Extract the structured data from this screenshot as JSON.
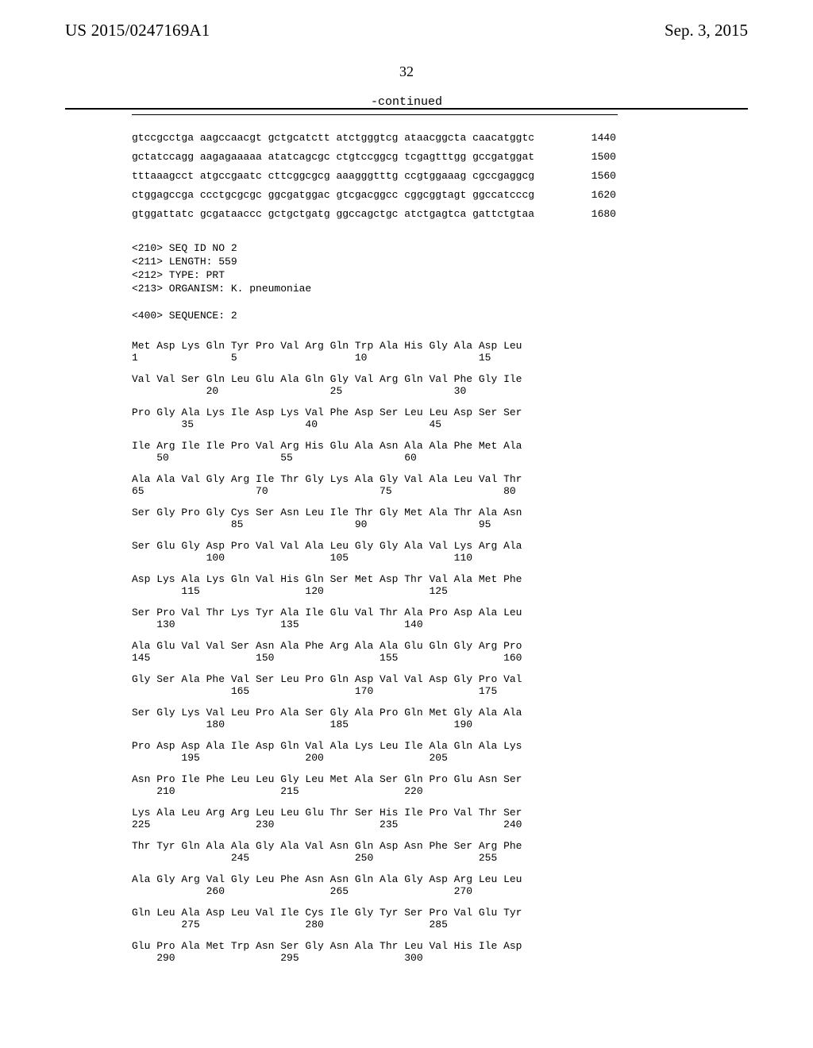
{
  "header": {
    "pub_number": "US 2015/0247169A1",
    "pub_date": "Sep. 3, 2015",
    "page_num": "32",
    "continued": "-continued"
  },
  "nucleotide": {
    "lines": [
      {
        "seq": "gtccgcctga aagccaacgt gctgcatctt atctgggtcg ataacggcta caacatggtc",
        "num": "1440"
      },
      {
        "seq": "gctatccagg aagagaaaaa atatcagcgc ctgtccggcg tcgagtttgg gccgatggat",
        "num": "1500"
      },
      {
        "seq": "tttaaagcct atgccgaatc cttcggcgcg aaagggtttg ccgtggaaag cgccgaggcg",
        "num": "1560"
      },
      {
        "seq": "ctggagccga ccctgcgcgc ggcgatggac gtcgacggcc cggcggtagt ggccatcccg",
        "num": "1620"
      },
      {
        "seq": "gtggattatc gcgataaccc gctgctgatg ggccagctgc atctgagtca gattctgtaa",
        "num": "1680"
      }
    ]
  },
  "meta": {
    "lines": [
      "<210> SEQ ID NO 2",
      "<211> LENGTH: 559",
      "<212> TYPE: PRT",
      "<213> ORGANISM: K. pneumoniae",
      "",
      "<400> SEQUENCE: 2"
    ]
  },
  "protein": {
    "pairs": [
      {
        "aa": "Met Asp Lys Gln Tyr Pro Val Arg Gln Trp Ala His Gly Ala Asp Leu",
        "num": "1               5                   10                  15"
      },
      {
        "aa": "Val Val Ser Gln Leu Glu Ala Gln Gly Val Arg Gln Val Phe Gly Ile",
        "num": "            20                  25                  30"
      },
      {
        "aa": "Pro Gly Ala Lys Ile Asp Lys Val Phe Asp Ser Leu Leu Asp Ser Ser",
        "num": "        35                  40                  45"
      },
      {
        "aa": "Ile Arg Ile Ile Pro Val Arg His Glu Ala Asn Ala Ala Phe Met Ala",
        "num": "    50                  55                  60"
      },
      {
        "aa": "Ala Ala Val Gly Arg Ile Thr Gly Lys Ala Gly Val Ala Leu Val Thr",
        "num": "65                  70                  75                  80"
      },
      {
        "aa": "Ser Gly Pro Gly Cys Ser Asn Leu Ile Thr Gly Met Ala Thr Ala Asn",
        "num": "                85                  90                  95"
      },
      {
        "aa": "Ser Glu Gly Asp Pro Val Val Ala Leu Gly Gly Ala Val Lys Arg Ala",
        "num": "            100                 105                 110"
      },
      {
        "aa": "Asp Lys Ala Lys Gln Val His Gln Ser Met Asp Thr Val Ala Met Phe",
        "num": "        115                 120                 125"
      },
      {
        "aa": "Ser Pro Val Thr Lys Tyr Ala Ile Glu Val Thr Ala Pro Asp Ala Leu",
        "num": "    130                 135                 140"
      },
      {
        "aa": "Ala Glu Val Val Ser Asn Ala Phe Arg Ala Ala Glu Gln Gly Arg Pro",
        "num": "145                 150                 155                 160"
      },
      {
        "aa": "Gly Ser Ala Phe Val Ser Leu Pro Gln Asp Val Val Asp Gly Pro Val",
        "num": "                165                 170                 175"
      },
      {
        "aa": "Ser Gly Lys Val Leu Pro Ala Ser Gly Ala Pro Gln Met Gly Ala Ala",
        "num": "            180                 185                 190"
      },
      {
        "aa": "Pro Asp Asp Ala Ile Asp Gln Val Ala Lys Leu Ile Ala Gln Ala Lys",
        "num": "        195                 200                 205"
      },
      {
        "aa": "Asn Pro Ile Phe Leu Leu Gly Leu Met Ala Ser Gln Pro Glu Asn Ser",
        "num": "    210                 215                 220"
      },
      {
        "aa": "Lys Ala Leu Arg Arg Leu Leu Glu Thr Ser His Ile Pro Val Thr Ser",
        "num": "225                 230                 235                 240"
      },
      {
        "aa": "Thr Tyr Gln Ala Ala Gly Ala Val Asn Gln Asp Asn Phe Ser Arg Phe",
        "num": "                245                 250                 255"
      },
      {
        "aa": "Ala Gly Arg Val Gly Leu Phe Asn Asn Gln Ala Gly Asp Arg Leu Leu",
        "num": "            260                 265                 270"
      },
      {
        "aa": "Gln Leu Ala Asp Leu Val Ile Cys Ile Gly Tyr Ser Pro Val Glu Tyr",
        "num": "        275                 280                 285"
      },
      {
        "aa": "Glu Pro Ala Met Trp Asn Ser Gly Asn Ala Thr Leu Val His Ile Asp",
        "num": "    290                 295                 300"
      }
    ]
  }
}
